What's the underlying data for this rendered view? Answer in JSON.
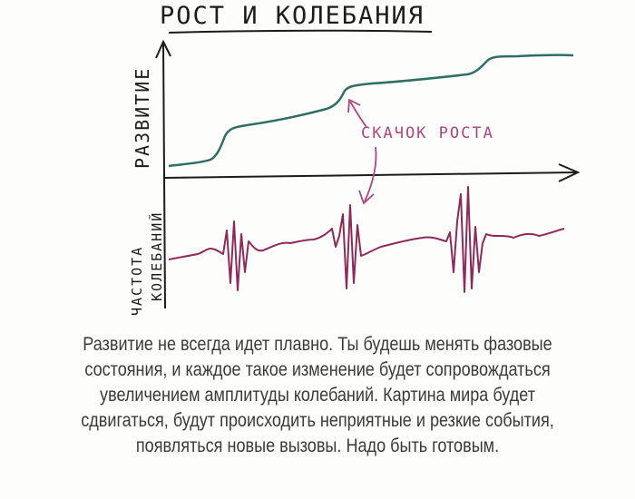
{
  "title": "РОСТ И КОЛЕБАНИЯ",
  "top_axis_label": "РАЗВИТИЕ",
  "bottom_axis_label_line1": "ЧАСТОТА",
  "bottom_axis_label_line2": "КОЛЕБАНИЙ",
  "annotation": "СКАЧОК РОСТА",
  "colors": {
    "growth_line": "#2f6e63",
    "oscillation_line": "#8e2a5a",
    "annotation": "#b0457d",
    "ink": "#1c1c1c"
  },
  "caption": {
    "line1": "Развитие не всегда идет плавно. Ты будешь менять фазовые",
    "line2": "состояния, и каждое такое изменение будет сопровождаться",
    "line3": "увеличением амплитуды колебаний. Картина мира будет",
    "line4": "сдвигаться, будут происходить неприятные и резкие события,",
    "line5": "появляться новые вызовы. Надо быть готовым."
  }
}
